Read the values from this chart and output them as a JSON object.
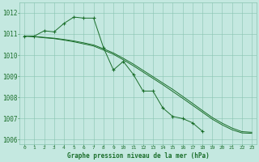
{
  "title": "Graphe pression niveau de la mer (hPa)",
  "bg_color": "#c4e8e0",
  "grid_color": "#88c4b0",
  "line_color": "#1a6e2a",
  "xlim": [
    -0.5,
    23.5
  ],
  "ylim": [
    1005.8,
    1012.5
  ],
  "y_ticks": [
    1006,
    1007,
    1008,
    1009,
    1010,
    1011,
    1012
  ],
  "x_ticks": [
    0,
    1,
    2,
    3,
    4,
    5,
    6,
    7,
    8,
    9,
    10,
    11,
    12,
    13,
    14,
    15,
    16,
    17,
    18,
    19,
    20,
    21,
    22,
    23
  ],
  "x_labels": [
    "0",
    "1",
    "2",
    "3",
    "4",
    "5",
    "6",
    "7",
    "8",
    "9",
    "10",
    "11",
    "12",
    "13",
    "14",
    "15",
    "16",
    "17",
    "18",
    "19",
    "20",
    "21",
    "22",
    "23"
  ],
  "line1_x": [
    0,
    1,
    2,
    3,
    4,
    5,
    6,
    7,
    8,
    9,
    10,
    11,
    12,
    13,
    14,
    15,
    16,
    17,
    18
  ],
  "line1_y": [
    1010.9,
    1010.9,
    1011.15,
    1011.1,
    1011.5,
    1011.8,
    1011.75,
    1011.75,
    1010.35,
    1009.3,
    1009.7,
    1009.1,
    1008.3,
    1008.3,
    1007.5,
    1007.1,
    1007.0,
    1006.8,
    1006.4
  ],
  "line2_x": [
    0,
    1,
    2,
    3,
    4,
    5,
    6,
    7,
    8,
    9,
    10,
    11,
    12,
    13,
    14,
    15,
    16,
    17,
    18,
    19,
    20,
    21,
    22,
    23
  ],
  "line2_y": [
    1010.9,
    1010.88,
    1010.84,
    1010.8,
    1010.74,
    1010.67,
    1010.58,
    1010.48,
    1010.3,
    1010.1,
    1009.85,
    1009.58,
    1009.28,
    1008.98,
    1008.68,
    1008.38,
    1008.05,
    1007.72,
    1007.38,
    1007.05,
    1006.78,
    1006.55,
    1006.38,
    1006.35
  ],
  "line3_x": [
    0,
    1,
    2,
    3,
    4,
    5,
    6,
    7,
    8,
    9,
    10,
    11,
    12,
    13,
    14,
    15,
    16,
    17,
    18,
    19,
    20,
    21,
    22,
    23
  ],
  "line3_y": [
    1010.9,
    1010.87,
    1010.82,
    1010.78,
    1010.71,
    1010.63,
    1010.53,
    1010.43,
    1010.24,
    1010.04,
    1009.78,
    1009.5,
    1009.2,
    1008.9,
    1008.6,
    1008.28,
    1007.96,
    1007.63,
    1007.3,
    1006.97,
    1006.7,
    1006.47,
    1006.32,
    1006.3
  ]
}
